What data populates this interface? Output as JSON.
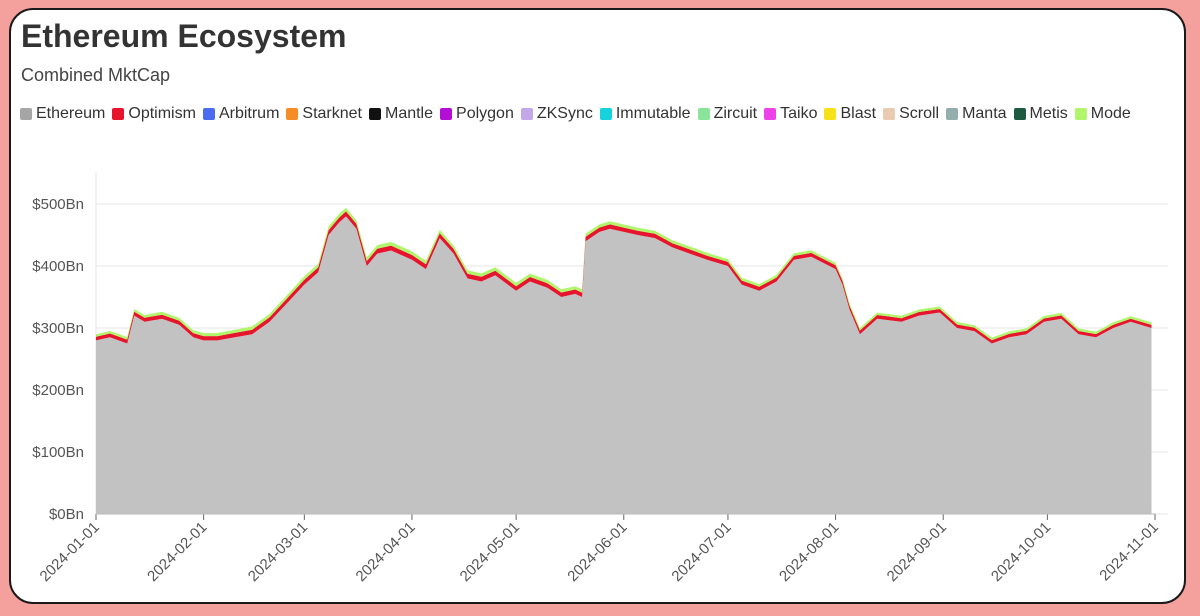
{
  "header": {
    "title": "Ethereum Ecosystem",
    "subtitle": "Combined MktCap"
  },
  "chart_data": {
    "type": "area",
    "stacked": true,
    "title": "Ethereum Ecosystem",
    "subtitle": "Combined MktCap",
    "xlabel": "",
    "ylabel": "",
    "x_range": [
      "2024-01-01",
      "2024-11-01"
    ],
    "ylim": [
      0,
      500
    ],
    "y_unit": "Bn USD",
    "y_ticks": [
      "$0Bn",
      "$100Bn",
      "$200Bn",
      "$300Bn",
      "$400Bn",
      "$500Bn"
    ],
    "y_tick_values": [
      0,
      100,
      200,
      300,
      400,
      500
    ],
    "x_ticks": [
      "2024-01-01",
      "2024-02-01",
      "2024-03-01",
      "2024-04-01",
      "2024-05-01",
      "2024-06-01",
      "2024-07-01",
      "2024-08-01",
      "2024-09-01",
      "2024-10-01",
      "2024-11-01"
    ],
    "grid": true,
    "legend_position": "top",
    "legend": [
      {
        "name": "Ethereum",
        "color": "#a6a6a6"
      },
      {
        "name": "Optimism",
        "color": "#e6142c"
      },
      {
        "name": "Arbitrum",
        "color": "#4a6cf0"
      },
      {
        "name": "Starknet",
        "color": "#f58c28"
      },
      {
        "name": "Mantle",
        "color": "#111111"
      },
      {
        "name": "Polygon",
        "color": "#b30fd6"
      },
      {
        "name": "ZKSync",
        "color": "#c2a8e8"
      },
      {
        "name": "Immutable",
        "color": "#16d2dc"
      },
      {
        "name": "Zircuit",
        "color": "#8ae59a"
      },
      {
        "name": "Taiko",
        "color": "#ec42e8"
      },
      {
        "name": "Blast",
        "color": "#f7e21a"
      },
      {
        "name": "Scroll",
        "color": "#e8cbb0"
      },
      {
        "name": "Manta",
        "color": "#93aeac"
      },
      {
        "name": "Metis",
        "color": "#1e5a40"
      },
      {
        "name": "Mode",
        "color": "#b0f56a"
      }
    ],
    "series": [
      {
        "name": "Ethereum",
        "color": "#c2c2c2",
        "x": [
          "2024-01-01",
          "2024-01-05",
          "2024-01-10",
          "2024-01-12",
          "2024-01-15",
          "2024-01-20",
          "2024-01-25",
          "2024-01-29",
          "2024-02-01",
          "2024-02-05",
          "2024-02-10",
          "2024-02-15",
          "2024-02-20",
          "2024-02-25",
          "2024-03-01",
          "2024-03-05",
          "2024-03-08",
          "2024-03-11",
          "2024-03-13",
          "2024-03-16",
          "2024-03-19",
          "2024-03-22",
          "2024-03-26",
          "2024-04-01",
          "2024-04-05",
          "2024-04-09",
          "2024-04-13",
          "2024-04-17",
          "2024-04-21",
          "2024-04-25",
          "2024-05-01",
          "2024-05-05",
          "2024-05-10",
          "2024-05-14",
          "2024-05-18",
          "2024-05-20",
          "2024-05-21",
          "2024-05-25",
          "2024-05-28",
          "2024-06-01",
          "2024-06-05",
          "2024-06-10",
          "2024-06-15",
          "2024-06-20",
          "2024-06-25",
          "2024-07-01",
          "2024-07-05",
          "2024-07-10",
          "2024-07-15",
          "2024-07-20",
          "2024-07-25",
          "2024-08-01",
          "2024-08-03",
          "2024-08-05",
          "2024-08-08",
          "2024-08-13",
          "2024-08-20",
          "2024-08-25",
          "2024-08-31",
          "2024-09-05",
          "2024-09-10",
          "2024-09-15",
          "2024-09-20",
          "2024-09-25",
          "2024-09-30",
          "2024-10-05",
          "2024-10-10",
          "2024-10-15",
          "2024-10-20",
          "2024-10-25",
          "2024-10-31"
        ],
        "values": [
          280,
          285,
          275,
          320,
          310,
          315,
          305,
          285,
          280,
          280,
          285,
          290,
          310,
          340,
          370,
          390,
          450,
          470,
          480,
          460,
          400,
          420,
          425,
          410,
          395,
          445,
          420,
          380,
          375,
          385,
          360,
          375,
          365,
          350,
          355,
          350,
          440,
          455,
          460,
          455,
          450,
          445,
          430,
          420,
          410,
          400,
          370,
          360,
          375,
          410,
          415,
          395,
          370,
          330,
          290,
          315,
          310,
          320,
          325,
          300,
          295,
          275,
          285,
          290,
          310,
          315,
          290,
          285,
          300,
          310,
          300
        ]
      },
      {
        "name": "Optimism",
        "color": "#e6142c",
        "x": [
          "2024-01-01",
          "2024-03-13",
          "2024-06-01",
          "2024-08-05",
          "2024-10-31"
        ],
        "values": [
          6,
          8,
          7,
          6,
          5
        ]
      },
      {
        "name": "Mode",
        "color": "#b0f56a",
        "x": [
          "2024-01-01",
          "2024-03-13",
          "2024-06-01",
          "2024-08-05",
          "2024-10-31"
        ],
        "values": [
          4,
          6,
          5,
          4,
          4
        ]
      }
    ]
  }
}
